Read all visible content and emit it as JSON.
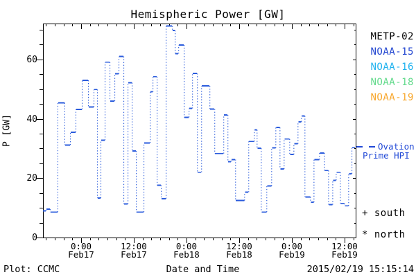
{
  "title": "Hemispheric Power [GW]",
  "y_axis": {
    "label": "P [GW]",
    "tick_values": [
      0,
      20,
      40,
      60
    ],
    "tick_labels": [
      "0",
      "20",
      "40",
      "60"
    ]
  },
  "x_axis": {
    "label": "Date and Time",
    "ticks": [
      {
        "time": "0:00",
        "date": "Feb17",
        "hour": 0
      },
      {
        "time": "12:00",
        "date": "Feb17",
        "hour": 12
      },
      {
        "time": "0:00",
        "date": "Feb18",
        "hour": 24
      },
      {
        "time": "12:00",
        "date": "Feb18",
        "hour": 36
      },
      {
        "time": "0:00",
        "date": "Feb19",
        "hour": 48
      },
      {
        "time": "12:00",
        "date": "Feb19",
        "hour": 60
      }
    ]
  },
  "legend": {
    "satellites": [
      {
        "label": "METP-02",
        "color": "#000000"
      },
      {
        "label": "NOAA-15",
        "color": "#2145d0"
      },
      {
        "label": "NOAA-16",
        "color": "#1fb2ef"
      },
      {
        "label": "NOAA-18",
        "color": "#62da8b"
      },
      {
        "label": "NOAA-19",
        "color": "#f8a62a"
      }
    ],
    "model": {
      "line1": "Ovation",
      "line2": "Prime HPI",
      "color": "#2149d6"
    },
    "hemisphere_markers": [
      {
        "symbol": "+",
        "label": "south"
      },
      {
        "symbol": "*",
        "label": "north"
      }
    ]
  },
  "footer": {
    "left": "Plot: CCMC",
    "right": "2015/02/19 15:15:14"
  },
  "chart_data": {
    "type": "line",
    "style": "step",
    "title": "Hemispheric Power [GW]",
    "xlabel": "Date and Time",
    "ylabel": "P [GW]",
    "ylim": [
      0,
      72.3
    ],
    "x_unit": "hours since 2015-02-17 00:00",
    "xlim": [
      -8.7,
      62.4
    ],
    "grid": false,
    "line_color": "#2a5bdc",
    "series": [
      {
        "name": "Ovation Prime HPI",
        "points_hour_gw": [
          [
            -8.69,
            9.1
          ],
          [
            -7.9,
            9.7
          ],
          [
            -6.96,
            8.7
          ],
          [
            -5.22,
            45.5
          ],
          [
            -3.64,
            31.3
          ],
          [
            -2.37,
            35.6
          ],
          [
            -1.11,
            43.3
          ],
          [
            0.32,
            53.1
          ],
          [
            1.74,
            44.1
          ],
          [
            3.0,
            50.0
          ],
          [
            3.79,
            13.4
          ],
          [
            4.58,
            32.9
          ],
          [
            5.53,
            59.2
          ],
          [
            6.64,
            46.1
          ],
          [
            7.75,
            55.3
          ],
          [
            8.69,
            61.1
          ],
          [
            9.8,
            11.4
          ],
          [
            10.75,
            52.3
          ],
          [
            11.7,
            29.3
          ],
          [
            12.65,
            8.7
          ],
          [
            14.38,
            32.0
          ],
          [
            15.81,
            49.2
          ],
          [
            16.44,
            54.3
          ],
          [
            17.39,
            17.7
          ],
          [
            18.34,
            13.2
          ],
          [
            19.44,
            71.4
          ],
          [
            20.87,
            69.9
          ],
          [
            21.5,
            62.1
          ],
          [
            22.29,
            65.0
          ],
          [
            23.55,
            40.6
          ],
          [
            24.66,
            43.6
          ],
          [
            25.45,
            55.4
          ],
          [
            26.56,
            22.1
          ],
          [
            27.51,
            51.2
          ],
          [
            29.4,
            43.4
          ],
          [
            30.51,
            28.4
          ],
          [
            32.56,
            41.4
          ],
          [
            33.51,
            25.7
          ],
          [
            34.3,
            26.4
          ],
          [
            35.25,
            12.6
          ],
          [
            37.31,
            15.4
          ],
          [
            38.25,
            32.5
          ],
          [
            39.52,
            36.4
          ],
          [
            40.15,
            30.2
          ],
          [
            41.1,
            8.7
          ],
          [
            42.36,
            17.5
          ],
          [
            43.47,
            30.3
          ],
          [
            44.42,
            37.2
          ],
          [
            45.37,
            23.2
          ],
          [
            46.31,
            33.3
          ],
          [
            47.58,
            28.1
          ],
          [
            48.53,
            31.7
          ],
          [
            49.47,
            39.1
          ],
          [
            50.26,
            41.1
          ],
          [
            51.05,
            13.8
          ],
          [
            52.32,
            12.0
          ],
          [
            53.11,
            26.4
          ],
          [
            54.37,
            28.6
          ],
          [
            55.48,
            22.7
          ],
          [
            56.43,
            11.2
          ],
          [
            57.38,
            19.4
          ],
          [
            58.17,
            22.1
          ],
          [
            59.11,
            11.6
          ],
          [
            60.06,
            10.8
          ],
          [
            61.0,
            21.6
          ],
          [
            61.75,
            30.4
          ]
        ]
      }
    ]
  }
}
